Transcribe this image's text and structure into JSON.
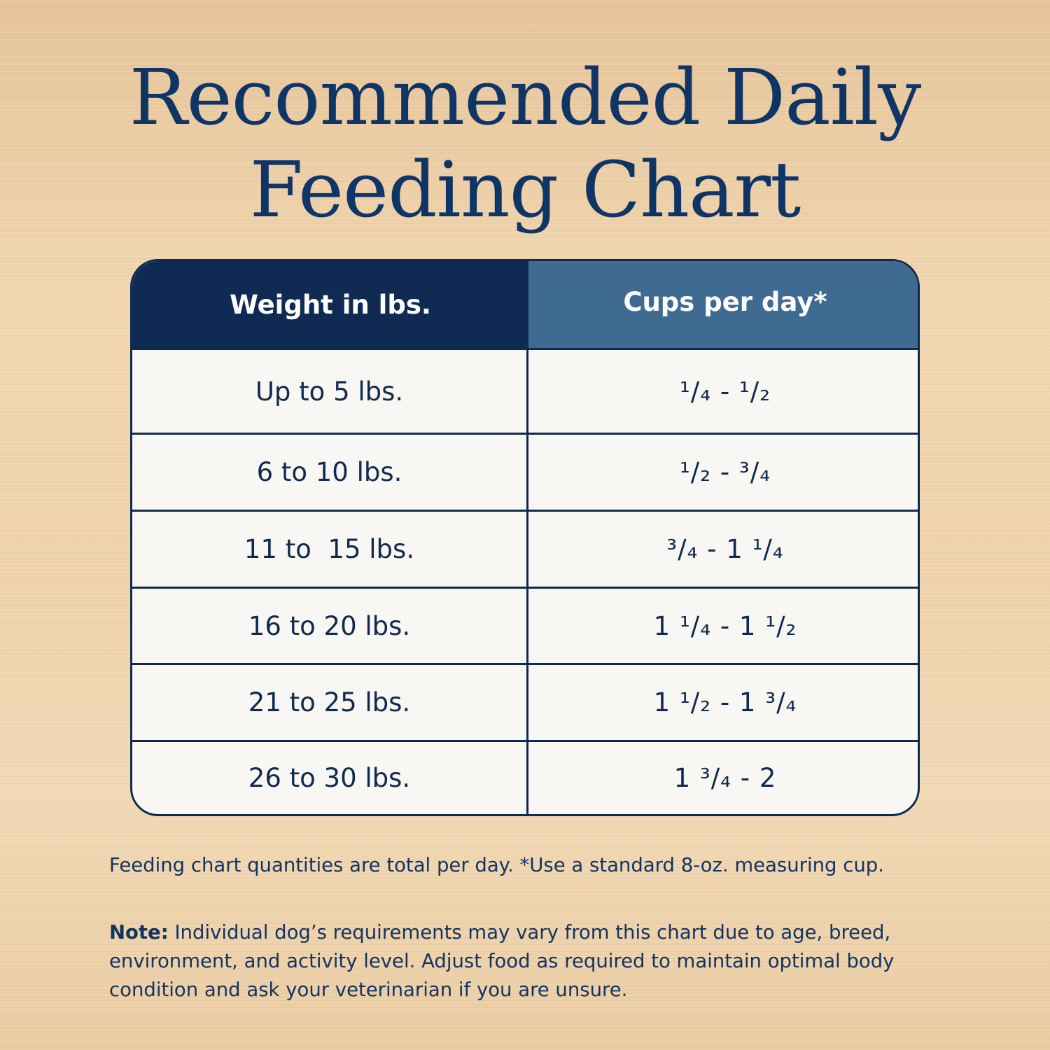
{
  "title": {
    "line1": "Recommended Daily",
    "line2": "Feeding Chart"
  },
  "table": {
    "headers": [
      "Weight in lbs.",
      "Cups per day*"
    ],
    "rows": [
      {
        "weight": "Up to 5 lbs.",
        "cups": "¹/₄ - ¹/₂"
      },
      {
        "weight": "6 to 10 lbs.",
        "cups": "¹/₂ - ³/₄"
      },
      {
        "weight": "11 to  15 lbs.",
        "cups": "³/₄ - 1 ¹/₄"
      },
      {
        "weight": "16 to 20 lbs.",
        "cups": "1 ¹/₄ - 1 ¹/₂"
      },
      {
        "weight": "21 to 25 lbs.",
        "cups": "1 ¹/₂ - 1 ³/₄"
      },
      {
        "weight": "26 to 30 lbs.",
        "cups": "1 ³/₄ - 2"
      }
    ]
  },
  "footnote": "Feeding chart quantities are total per day. *Use a standard 8-oz. measuring cup.",
  "note": {
    "label": "Note:",
    "text": " Individual dog’s requirements may vary from this chart due to age, breed, environment, and activity level. Adjust food as required to maintain optimal body condition and ask your veterinarian if you are unsure."
  },
  "colors": {
    "navy": "#0f2b54",
    "header_blue": "#3f6a91",
    "title_blue": "#0f3567",
    "background": "#eccda3"
  }
}
